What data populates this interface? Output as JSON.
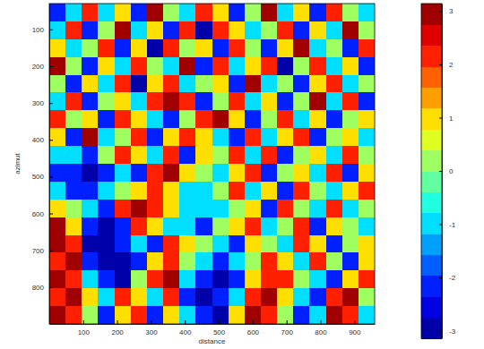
{
  "chart_data": {
    "type": "heatmap",
    "x_label": "distance",
    "y_label": "azimut",
    "xlim": [
      0,
      960
    ],
    "ylim": [
      30,
      900
    ],
    "xticks": [
      100,
      200,
      300,
      400,
      500,
      600,
      700,
      800,
      900
    ],
    "yticks": [
      100,
      200,
      300,
      400,
      500,
      600,
      700,
      800
    ],
    "cells": [
      [
        -2,
        -1,
        2,
        -1,
        1,
        -2,
        3,
        0,
        -1,
        2,
        1,
        -2,
        0,
        3,
        -1,
        1,
        -2,
        2,
        0,
        -1
      ],
      [
        -1,
        2,
        -2,
        0,
        3,
        -1,
        1,
        -2,
        2,
        -3,
        2,
        1,
        -1,
        0,
        2,
        -2,
        1,
        -1,
        3,
        0
      ],
      [
        1,
        -1,
        0,
        2,
        -2,
        1,
        -3,
        2,
        0,
        1,
        -2,
        2,
        0,
        -2,
        1,
        3,
        -1,
        0,
        -2,
        2
      ],
      [
        3,
        0,
        -2,
        1,
        -1,
        2,
        0,
        -1,
        3,
        -2,
        2,
        -1,
        1,
        2,
        -3,
        0,
        2,
        -1,
        1,
        -2
      ],
      [
        0,
        -2,
        1,
        -1,
        2,
        -3,
        1,
        2,
        -1,
        0,
        1,
        -2,
        3,
        -1,
        0,
        -2,
        1,
        2,
        -1,
        0
      ],
      [
        -1,
        2,
        -2,
        0,
        1,
        -1,
        2,
        3,
        2,
        -2,
        0,
        2,
        -1,
        1,
        -2,
        0,
        3,
        -1,
        2,
        -2
      ],
      [
        2,
        0,
        1,
        -2,
        2,
        1,
        -1,
        -2,
        0,
        2,
        3,
        1,
        -2,
        0,
        2,
        -1,
        1,
        -2,
        0,
        1
      ],
      [
        1,
        -2,
        3,
        -1,
        0,
        2,
        -2,
        1,
        2,
        1,
        -1,
        -2,
        2,
        -1,
        1,
        2,
        -2,
        0,
        1,
        -1
      ],
      [
        -1,
        -1,
        -2,
        0,
        2,
        1,
        -1,
        2,
        -2,
        1,
        0,
        2,
        -1,
        2,
        -2,
        0,
        1,
        -1,
        2,
        0
      ],
      [
        -2,
        -2,
        -3,
        -2,
        -1,
        -2,
        2,
        3,
        1,
        0,
        -1,
        1,
        2,
        -2,
        0,
        1,
        -1,
        2,
        -2,
        1
      ],
      [
        -1,
        -2,
        -2,
        -1,
        0,
        1,
        2,
        1,
        -1,
        -1,
        0,
        2,
        -1,
        1,
        -2,
        2,
        0,
        -1,
        1,
        2
      ],
      [
        1,
        0,
        -1,
        -2,
        2,
        3,
        2,
        1,
        -1,
        -1,
        -1,
        0,
        1,
        -2,
        2,
        0,
        -1,
        2,
        -1,
        0
      ],
      [
        3,
        1,
        -2,
        -3,
        -2,
        2,
        1,
        -1,
        -1,
        -2,
        0,
        1,
        2,
        -1,
        0,
        2,
        -2,
        1,
        0,
        -1
      ],
      [
        3,
        2,
        -3,
        -3,
        -2,
        -1,
        -2,
        2,
        1,
        0,
        -1,
        -2,
        1,
        0,
        -1,
        2,
        1,
        -2,
        0,
        1
      ],
      [
        2,
        3,
        -2,
        -3,
        -3,
        -2,
        1,
        2,
        0,
        -1,
        -2,
        -1,
        0,
        2,
        1,
        -1,
        2,
        0,
        -2,
        1
      ],
      [
        3,
        2,
        -1,
        -2,
        -3,
        0,
        2,
        3,
        -1,
        -2,
        -3,
        -2,
        1,
        2,
        2,
        0,
        -1,
        -2,
        1,
        2
      ],
      [
        2,
        3,
        1,
        -1,
        2,
        1,
        -1,
        2,
        -2,
        -3,
        -2,
        -1,
        2,
        3,
        1,
        -1,
        -2,
        2,
        3,
        0
      ],
      [
        3,
        2,
        0,
        -2,
        1,
        2,
        -2,
        1,
        -1,
        -2,
        -3,
        1,
        3,
        2,
        0,
        -2,
        -1,
        3,
        2,
        -1
      ]
    ],
    "colorbar_lim": [
      -3.14,
      3.14
    ],
    "colorbar_ticks": [
      -3,
      -2,
      -1,
      0,
      1,
      2,
      3
    ]
  }
}
